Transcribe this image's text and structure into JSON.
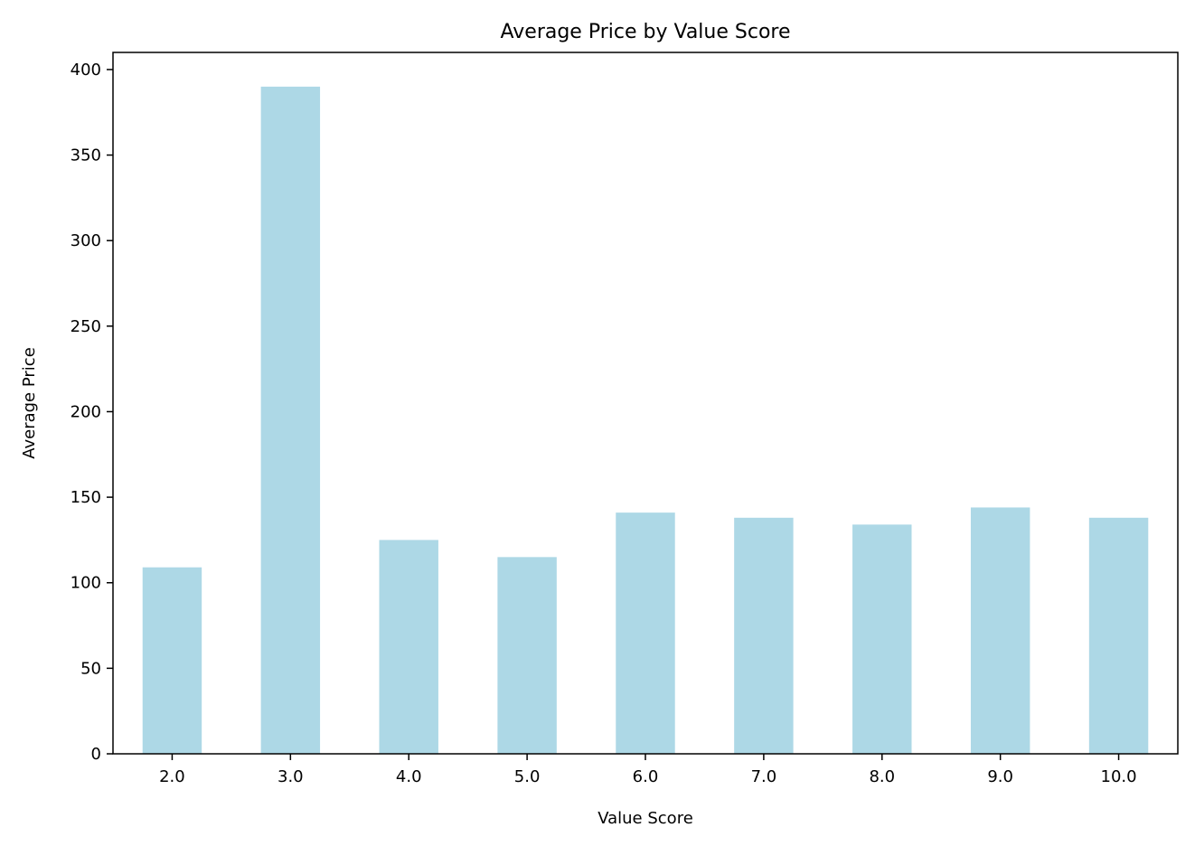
{
  "chart_data": {
    "type": "bar",
    "title": "Average Price by Value Score",
    "xlabel": "Value Score",
    "ylabel": "Average Price",
    "categories": [
      "2.0",
      "3.0",
      "4.0",
      "5.0",
      "6.0",
      "7.0",
      "8.0",
      "9.0",
      "10.0"
    ],
    "values": [
      109,
      390,
      125,
      115,
      141,
      138,
      134,
      144,
      138
    ],
    "ylim": [
      0,
      410
    ],
    "yticks": [
      "0",
      "50",
      "100",
      "150",
      "200",
      "250",
      "300",
      "350",
      "400"
    ],
    "grid": false,
    "bar_color": "#add8e6"
  }
}
